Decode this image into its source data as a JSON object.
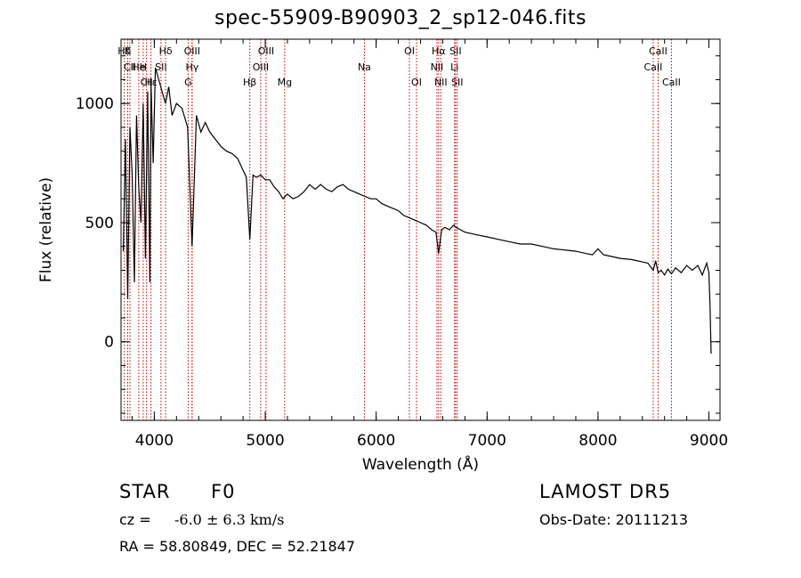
{
  "title": "spec-55909-B90903_2_sp12-046.fits",
  "footer": {
    "object_class": "STAR",
    "subclass": "F0",
    "cz_label": "cz =",
    "cz_value": "-6.0 ± 6.3 km/s",
    "coords": "RA =  58.80849, DEC =  52.21847",
    "survey": "LAMOST DR5",
    "obs_date": "Obs-Date: 20111213"
  },
  "chart_data": {
    "type": "line",
    "title": "spec-55909-B90903_2_sp12-046.fits",
    "xlabel": "Wavelength (Å)",
    "ylabel": "Flux (relative)",
    "xlim": [
      3700,
      9100
    ],
    "ylim": [
      -330,
      1270
    ],
    "xticks": [
      4000,
      5000,
      6000,
      7000,
      8000,
      9000
    ],
    "yticks": [
      0,
      500,
      1000
    ],
    "grid": false,
    "series": [
      {
        "x": [
          3720,
          3740,
          3760,
          3780,
          3800,
          3820,
          3840,
          3860,
          3880,
          3900,
          3920,
          3940,
          3960,
          3970,
          3990,
          4010,
          4040,
          4070,
          4100,
          4130,
          4160,
          4200,
          4250,
          4300,
          4340,
          4380,
          4420,
          4460,
          4500,
          4550,
          4600,
          4650,
          4700,
          4750,
          4800,
          4830,
          4861,
          4890,
          4920,
          4960,
          5000,
          5040,
          5080,
          5120,
          5160,
          5200,
          5250,
          5300,
          5350,
          5400,
          5450,
          5500,
          5550,
          5600,
          5650,
          5700,
          5750,
          5800,
          5850,
          5900,
          5950,
          6000,
          6050,
          6100,
          6150,
          6200,
          6250,
          6300,
          6350,
          6400,
          6450,
          6500,
          6540,
          6563,
          6590,
          6620,
          6660,
          6700,
          6720,
          6760,
          6800,
          6900,
          7000,
          7100,
          7200,
          7300,
          7400,
          7500,
          7600,
          7700,
          7800,
          7900,
          7950,
          8000,
          8050,
          8100,
          8200,
          8300,
          8400,
          8450,
          8498,
          8520,
          8542,
          8570,
          8600,
          8630,
          8662,
          8700,
          8750,
          8800,
          8850,
          8900,
          8940,
          8980,
          9000,
          9010,
          9020
        ],
        "values": [
          380,
          850,
          180,
          900,
          700,
          250,
          950,
          650,
          500,
          1000,
          350,
          1050,
          250,
          1080,
          750,
          1150,
          1100,
          1050,
          1000,
          1070,
          950,
          1000,
          980,
          900,
          400,
          950,
          880,
          920,
          880,
          850,
          820,
          800,
          790,
          770,
          720,
          690,
          430,
          700,
          690,
          700,
          680,
          680,
          650,
          630,
          600,
          620,
          600,
          610,
          630,
          660,
          640,
          660,
          640,
          630,
          650,
          660,
          640,
          630,
          620,
          610,
          600,
          600,
          580,
          570,
          560,
          550,
          530,
          520,
          510,
          500,
          490,
          470,
          460,
          370,
          470,
          480,
          470,
          490,
          480,
          470,
          460,
          450,
          440,
          430,
          420,
          410,
          410,
          400,
          390,
          385,
          380,
          370,
          365,
          390,
          365,
          360,
          350,
          345,
          335,
          330,
          300,
          340,
          290,
          300,
          280,
          305,
          285,
          310,
          290,
          320,
          300,
          320,
          280,
          330,
          290,
          150,
          -50
        ]
      }
    ],
    "lines": [
      {
        "label": "Hδ",
        "x": 3730,
        "row": 0
      },
      {
        "label": "K",
        "x": 3760,
        "row": 0
      },
      {
        "label": "CII",
        "x": 3780,
        "row": 1
      },
      {
        "label": "He",
        "x": 3860,
        "row": 1
      },
      {
        "label": "H",
        "x": 3900,
        "row": 1
      },
      {
        "label": "CII",
        "x": 3930,
        "row": 2
      },
      {
        "label": "Hε",
        "x": 3970,
        "row": 2
      },
      {
        "label": "SII",
        "x": 4060,
        "row": 1
      },
      {
        "label": "Hδ",
        "x": 4102,
        "row": 0
      },
      {
        "label": "OIII",
        "x": 4340,
        "row": 0
      },
      {
        "label": "Hγ",
        "x": 4341,
        "row": 1
      },
      {
        "label": "G",
        "x": 4305,
        "row": 2
      },
      {
        "label": "Hβ",
        "x": 4861,
        "row": 2
      },
      {
        "label": "OIII",
        "x": 4959,
        "row": 1
      },
      {
        "label": "OIII",
        "x": 5007,
        "row": 0
      },
      {
        "label": "Mg",
        "x": 5175,
        "row": 2
      },
      {
        "label": "Na",
        "x": 5894,
        "row": 1
      },
      {
        "label": "OI",
        "x": 6300,
        "row": 0
      },
      {
        "label": "OI",
        "x": 6364,
        "row": 2
      },
      {
        "label": "Hα",
        "x": 6563,
        "row": 0
      },
      {
        "label": "NII",
        "x": 6548,
        "row": 1
      },
      {
        "label": "NII",
        "x": 6583,
        "row": 2
      },
      {
        "label": "SII",
        "x": 6716,
        "row": 0
      },
      {
        "label": "Li",
        "x": 6707,
        "row": 1
      },
      {
        "label": "SII",
        "x": 6731,
        "row": 2
      },
      {
        "label": "CaII",
        "x": 8542,
        "row": 0
      },
      {
        "label": "CaII",
        "x": 8498,
        "row": 1
      },
      {
        "label": "CaII",
        "x": 8662,
        "row": 2
      }
    ]
  }
}
